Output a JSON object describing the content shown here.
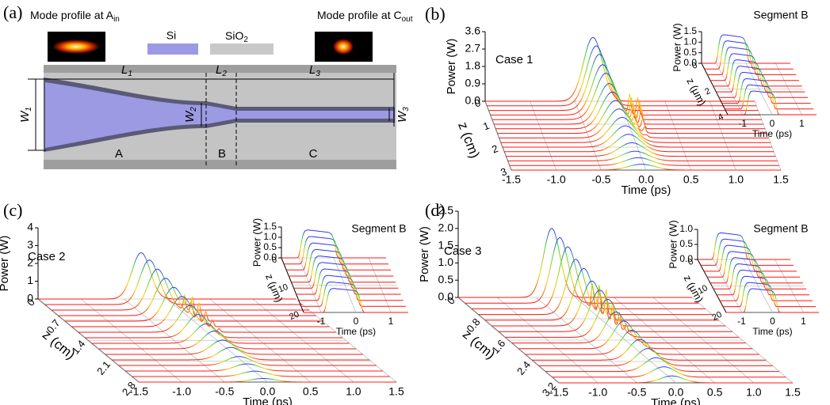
{
  "panel_a": {
    "label": "(a)",
    "mode_in": {
      "text": "Mode profile at A",
      "sub": "in"
    },
    "mode_out": {
      "text": "Mode profile at C",
      "sub": "out"
    },
    "legend_si": "Si",
    "legend_sio2": {
      "text": "SiO",
      "sub": "2"
    },
    "L1": {
      "text": "L",
      "sub": "1"
    },
    "L2": {
      "text": "L",
      "sub": "2"
    },
    "L3": {
      "text": "L",
      "sub": "3"
    },
    "W1": {
      "text": "W",
      "sub": "1"
    },
    "W2": {
      "text": "W",
      "sub": "2"
    },
    "W3": {
      "text": "W",
      "sub": "3"
    },
    "segments": [
      "A",
      "B",
      "C"
    ]
  },
  "panels": [
    {
      "label": "(b)",
      "case": "Case 1",
      "main": {
        "title_power": "Power (W)",
        "title_z": "z (cm)",
        "title_time": "Time (ps)",
        "xlim": [
          -1.5,
          1.5
        ],
        "ylim": [
          0,
          3.6
        ],
        "zlim": [
          0,
          3
        ],
        "xticks": [
          -1.5,
          {
            "value": -1,
            "label": "-1.0"
          },
          -0.5,
          {
            "value": 0,
            "label": "0.0"
          },
          0.5,
          {
            "value": 1,
            "label": "1.0"
          },
          1.5
        ],
        "yticks": [
          {
            "value": 0,
            "label": "0.0"
          },
          0.9,
          1.8,
          2.7,
          3.6
        ],
        "zticks": [
          0,
          1,
          2,
          3
        ],
        "peaks": [
          3.3,
          3.1,
          2.9,
          2.6,
          2.4,
          2.1,
          1.9,
          1.7,
          1.5,
          1.3,
          1.1,
          0.9,
          0.7,
          0.5,
          0.4,
          0.3
        ],
        "spike_peaks": [
          0,
          0,
          0,
          1.0,
          1.0,
          0.9,
          0.6,
          0.3,
          0.1,
          0,
          0,
          0,
          0,
          0,
          0,
          0
        ]
      },
      "inset": {
        "title": "Segment B",
        "title_power": "Power (W)",
        "title_z": "z (μm)",
        "title_time": "Time (ps)",
        "xlim": [
          -1.5,
          1.5
        ],
        "ylim": [
          0,
          1.5
        ],
        "zlim": [
          0,
          4
        ],
        "xticks": [
          -1,
          0,
          1
        ],
        "yticks": [
          {
            "value": 0,
            "label": "0.0"
          },
          0.5,
          {
            "value": 1,
            "label": "1.0"
          },
          1.5
        ],
        "zticks": [
          0,
          2,
          4
        ],
        "peaks": [
          1.3,
          1.28,
          1.25,
          1.22,
          1.2,
          1.17,
          1.15,
          1.12,
          1.1,
          1.08
        ]
      }
    },
    {
      "label": "(c)",
      "case": "Case 2",
      "main": {
        "title_power": "Power (W)",
        "title_z": "z (cm)",
        "title_time": "Time (ps)",
        "xlim": [
          -1.5,
          1.5
        ],
        "ylim": [
          0,
          4
        ],
        "zlim": [
          0,
          2.8
        ],
        "xticks": [
          -1.5,
          {
            "value": -1,
            "label": "-1.0"
          },
          -0.5,
          {
            "value": 0,
            "label": "0.0"
          },
          0.5,
          {
            "value": 1,
            "label": "1.0"
          },
          1.5
        ],
        "yticks": [
          0,
          1,
          2,
          3,
          4
        ],
        "zticks": [
          0,
          0.7,
          1.4,
          2.1,
          2.8
        ],
        "peaks": [
          2.6,
          2.5,
          2.3,
          2.1,
          1.9,
          1.7,
          1.5,
          1.3,
          1.1,
          1.0,
          0.8,
          0.7,
          0.5,
          0.4,
          0.3,
          0.2
        ],
        "spike_peaks": [
          0,
          0,
          0.8,
          0.8,
          0.6,
          0.4,
          0.2,
          0,
          0,
          0,
          0,
          0,
          0,
          0,
          0,
          0
        ]
      },
      "inset": {
        "title": "Segment B",
        "title_power": "Power (W)",
        "title_z": "z (μm)",
        "title_time": "Time (ps)",
        "xlim": [
          -1.5,
          1.5
        ],
        "ylim": [
          0,
          1.5
        ],
        "zlim": [
          0,
          20
        ],
        "xticks": [
          -1,
          0,
          1
        ],
        "yticks": [
          {
            "value": 0,
            "label": "0.0"
          },
          0.5,
          {
            "value": 1,
            "label": "1.0"
          },
          1.5
        ],
        "zticks": [
          0,
          10,
          20
        ],
        "peaks": [
          1.3,
          1.28,
          1.26,
          1.24,
          1.22,
          1.2,
          1.18,
          1.16,
          1.14,
          1.12
        ]
      }
    },
    {
      "label": "(d)",
      "case": "Case 3",
      "main": {
        "title_power": "Power (W)",
        "title_z": "z (cm)",
        "title_time": "Time (ps)",
        "xlim": [
          -1.5,
          1.5
        ],
        "ylim": [
          0,
          2.5
        ],
        "zlim": [
          0,
          3.2
        ],
        "xticks": [
          -1.5,
          {
            "value": -1,
            "label": "-1.0"
          },
          -0.5,
          {
            "value": 0,
            "label": "0.0"
          },
          0.5,
          {
            "value": 1,
            "label": "1.0"
          },
          1.5
        ],
        "yticks": [
          {
            "value": 0,
            "label": "0.0"
          },
          0.5,
          {
            "value": 1,
            "label": "1.0"
          },
          1.5,
          {
            "value": 2,
            "label": "2.0"
          },
          2.5
        ],
        "zticks": [
          0,
          0.8,
          1.6,
          2.4,
          3.2
        ],
        "peaks": [
          2.0,
          1.9,
          1.8,
          1.6,
          1.5,
          1.3,
          1.2,
          1.1,
          0.9,
          0.8,
          0.7,
          0.6,
          0.5,
          0.4,
          0.3,
          0.2
        ],
        "spike_peaks": [
          0,
          0,
          0.7,
          0.8,
          0.6,
          0.4,
          0.2,
          0,
          0,
          0,
          0,
          0,
          0,
          0,
          0,
          0
        ]
      },
      "inset": {
        "title": "Segment B",
        "title_power": "Power (W)",
        "title_z": "z (μm)",
        "title_time": "Time (ps)",
        "xlim": [
          -1.5,
          1.5
        ],
        "ylim": [
          0,
          1
        ],
        "zlim": [
          0,
          20
        ],
        "xticks": [
          -1,
          0,
          1
        ],
        "yticks": [
          {
            "value": 0,
            "label": "0.0"
          },
          0.5,
          {
            "value": 1,
            "label": "1.0"
          }
        ],
        "zticks": [
          0,
          10,
          20
        ],
        "peaks": [
          0.85,
          0.84,
          0.83,
          0.82,
          0.81,
          0.8,
          0.79,
          0.78,
          0.77,
          0.76
        ]
      }
    }
  ]
}
